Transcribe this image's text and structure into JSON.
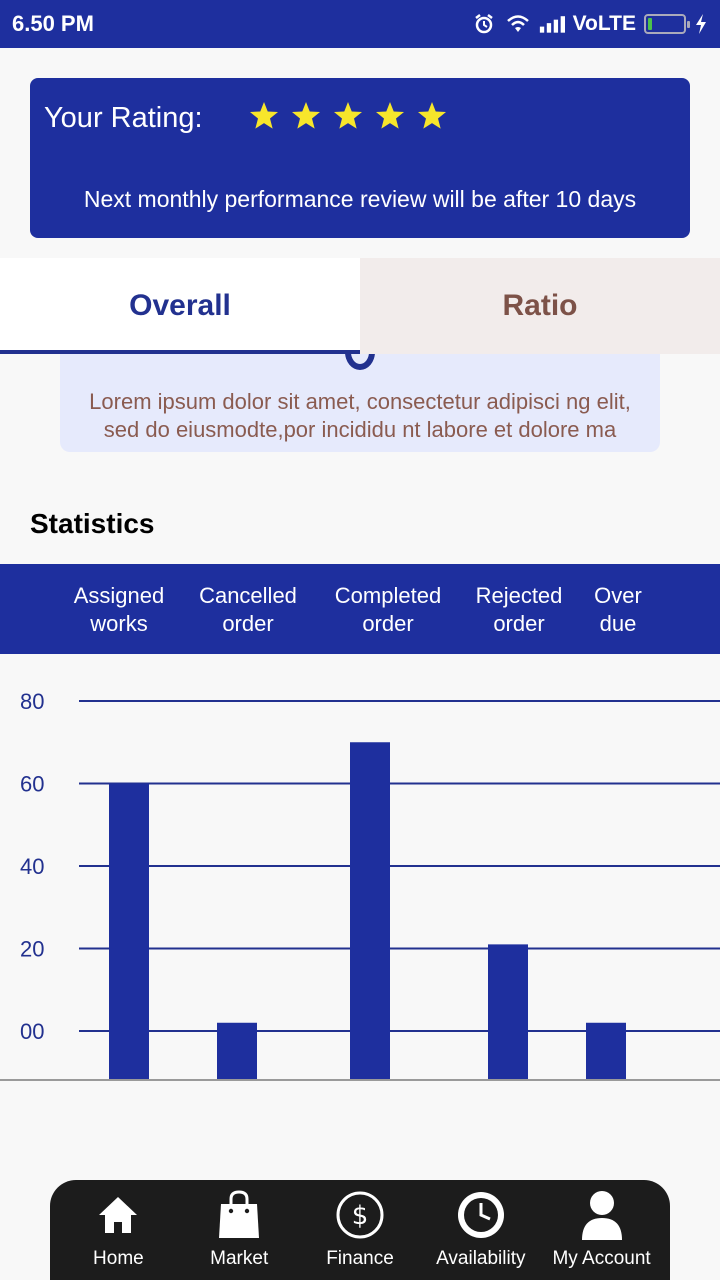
{
  "status_bar": {
    "time": "6.50 PM",
    "network": "VoLTE",
    "battery_level": 0.12
  },
  "rating": {
    "label": "Your Rating:",
    "stars": 5,
    "review_text": "Next monthly performance review will be after 10 days"
  },
  "tabs": [
    {
      "label": "Overall",
      "active": true
    },
    {
      "label": "Ratio",
      "active": false
    }
  ],
  "overall": {
    "description": "Lorem ipsum dolor sit amet, consectetur adipisci ng elit,\nsed do eiusmodte,por incididu nt labore et dolore ma"
  },
  "statistics": {
    "title": "Statistics",
    "header_categories": [
      {
        "line1": "Assigned",
        "line2": "works"
      },
      {
        "line1": "Cancelled",
        "line2": "order"
      },
      {
        "line1": "Completed",
        "line2": "order"
      },
      {
        "line1": "Rejected",
        "line2": "order"
      },
      {
        "line1": "Over",
        "line2": "due"
      }
    ]
  },
  "chart_data": {
    "type": "bar",
    "categories": [
      "Assigned works",
      "Cancelled order",
      "Completed order",
      "Rejected order",
      "Over due"
    ],
    "values": [
      60,
      2,
      70,
      21,
      2
    ],
    "y_ticks": [
      "00",
      "20",
      "40",
      "60",
      "80"
    ],
    "y_tick_values": [
      0,
      20,
      40,
      60,
      80
    ],
    "ylim": [
      -12,
      80
    ],
    "grid": true,
    "colors": {
      "bar": "#1e2f9e",
      "grid": "#22318f",
      "tick_label": "#22318f"
    }
  },
  "bottom_nav": [
    {
      "label": "Home",
      "icon": "home-icon"
    },
    {
      "label": "Market",
      "icon": "shopping-bag-icon"
    },
    {
      "label": "Finance",
      "icon": "dollar-icon"
    },
    {
      "label": "Availability",
      "icon": "clock-icon"
    },
    {
      "label": "My Account",
      "icon": "user-icon"
    }
  ],
  "colors": {
    "primary": "#1e2f9e",
    "star": "#f7e62b",
    "ratio_tab_bg": "#f2eceb",
    "ratio_tab_text": "#7d5248"
  }
}
